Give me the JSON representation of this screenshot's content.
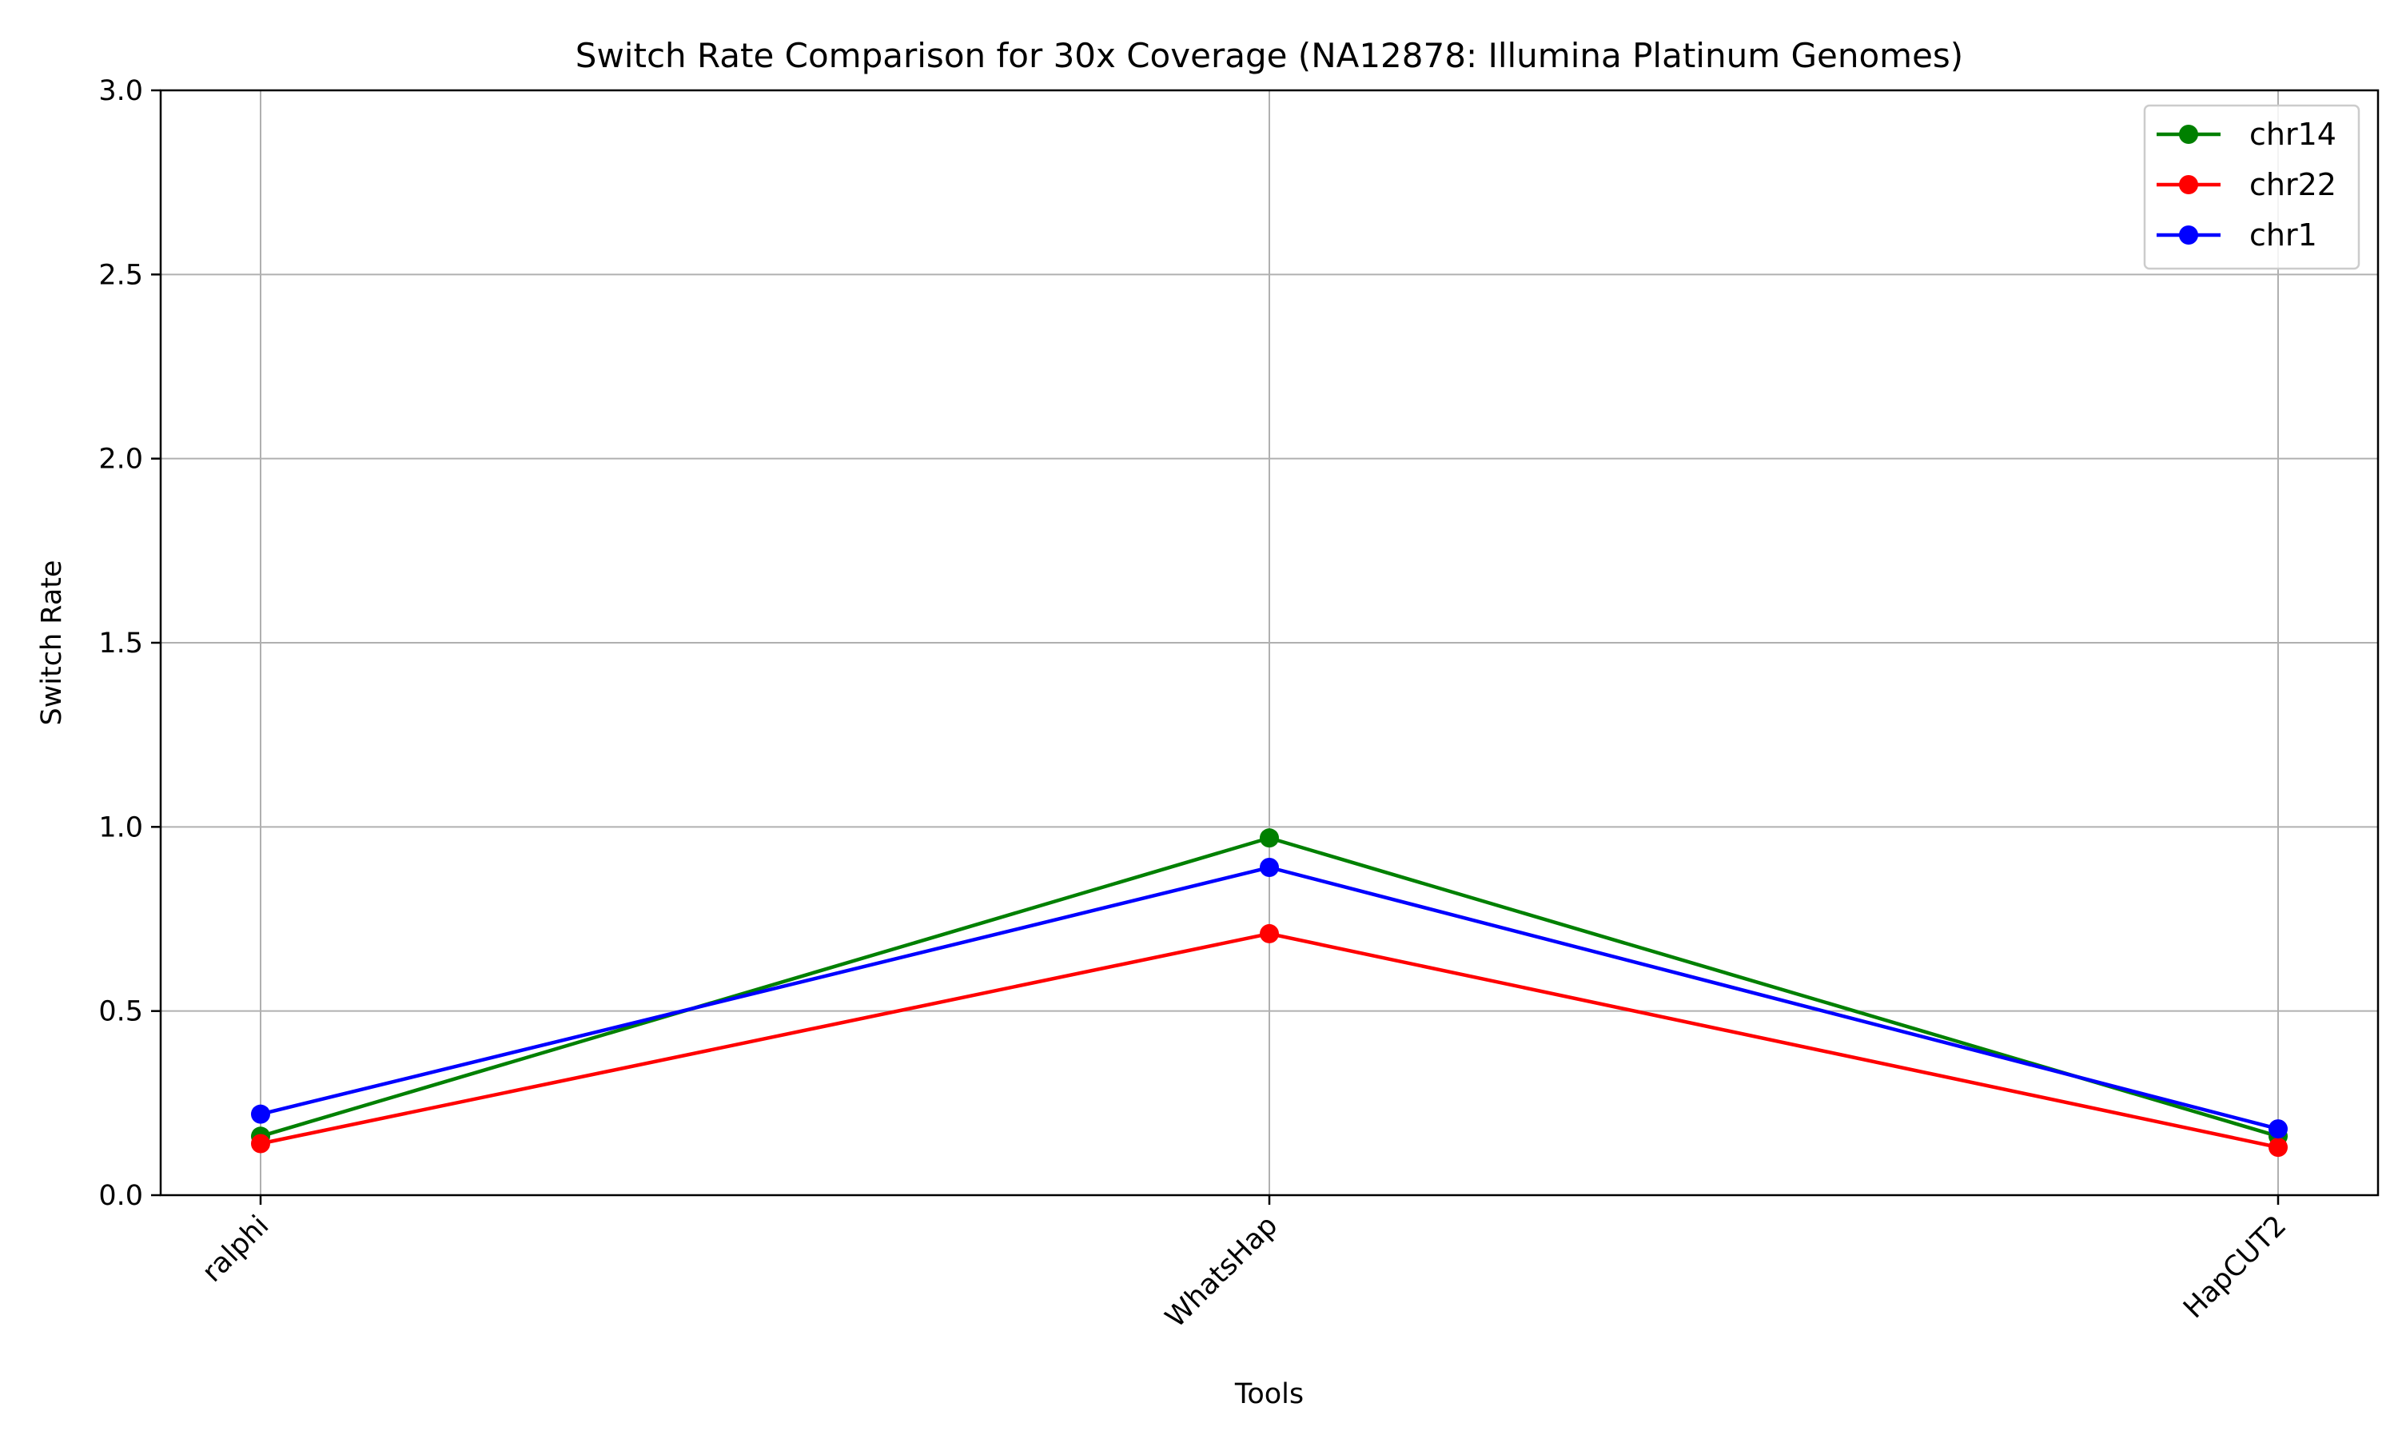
{
  "chart_data": {
    "type": "line",
    "title": "Switch Rate Comparison for 30x Coverage (NA12878: Illumina Platinum Genomes)",
    "xlabel": "Tools",
    "ylabel": "Switch Rate",
    "categories": [
      "ralphi",
      "WhatsHap",
      "HapCUT2"
    ],
    "ylim": [
      0,
      3.0
    ],
    "yticks": [
      "0.0",
      "0.5",
      "1.0",
      "1.5",
      "2.0",
      "2.5",
      "3.0"
    ],
    "grid": true,
    "legend_position": "top-right",
    "series": [
      {
        "name": "chr14",
        "color": "#008000",
        "values": [
          0.16,
          0.97,
          0.16
        ]
      },
      {
        "name": "chr22",
        "color": "#ff0000",
        "values": [
          0.14,
          0.71,
          0.13
        ]
      },
      {
        "name": "chr1",
        "color": "#0000ff",
        "values": [
          0.22,
          0.89,
          0.18
        ]
      }
    ]
  }
}
